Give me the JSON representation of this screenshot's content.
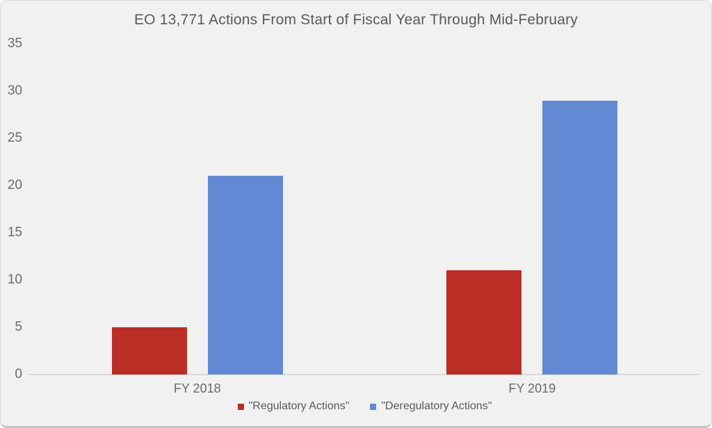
{
  "window": {
    "background": "#f1f1f1",
    "border_color": "#d8d8d8",
    "outer_background": "#ffffff"
  },
  "chart_data": {
    "type": "bar",
    "title": "EO 13,771 Actions From Start of Fiscal Year Through Mid-February",
    "categories": [
      "FY 2018",
      "FY 2019"
    ],
    "series": [
      {
        "name": "\"Regulatory Actions\"",
        "color": "#bb2e25",
        "values": [
          5,
          11
        ]
      },
      {
        "name": "\"Deregulatory Actions\"",
        "color": "#6389d4",
        "values": [
          21,
          29
        ]
      }
    ],
    "xlabel": "",
    "ylabel": "",
    "ylim": [
      0,
      35
    ],
    "yticks": [
      0,
      5,
      10,
      15,
      20,
      25,
      30,
      35
    ],
    "grid": false,
    "legend_position": "bottom",
    "axis_line_color": "#d9d9d9",
    "title_color": "#595959",
    "tick_label_color": "#6a6a6a"
  }
}
